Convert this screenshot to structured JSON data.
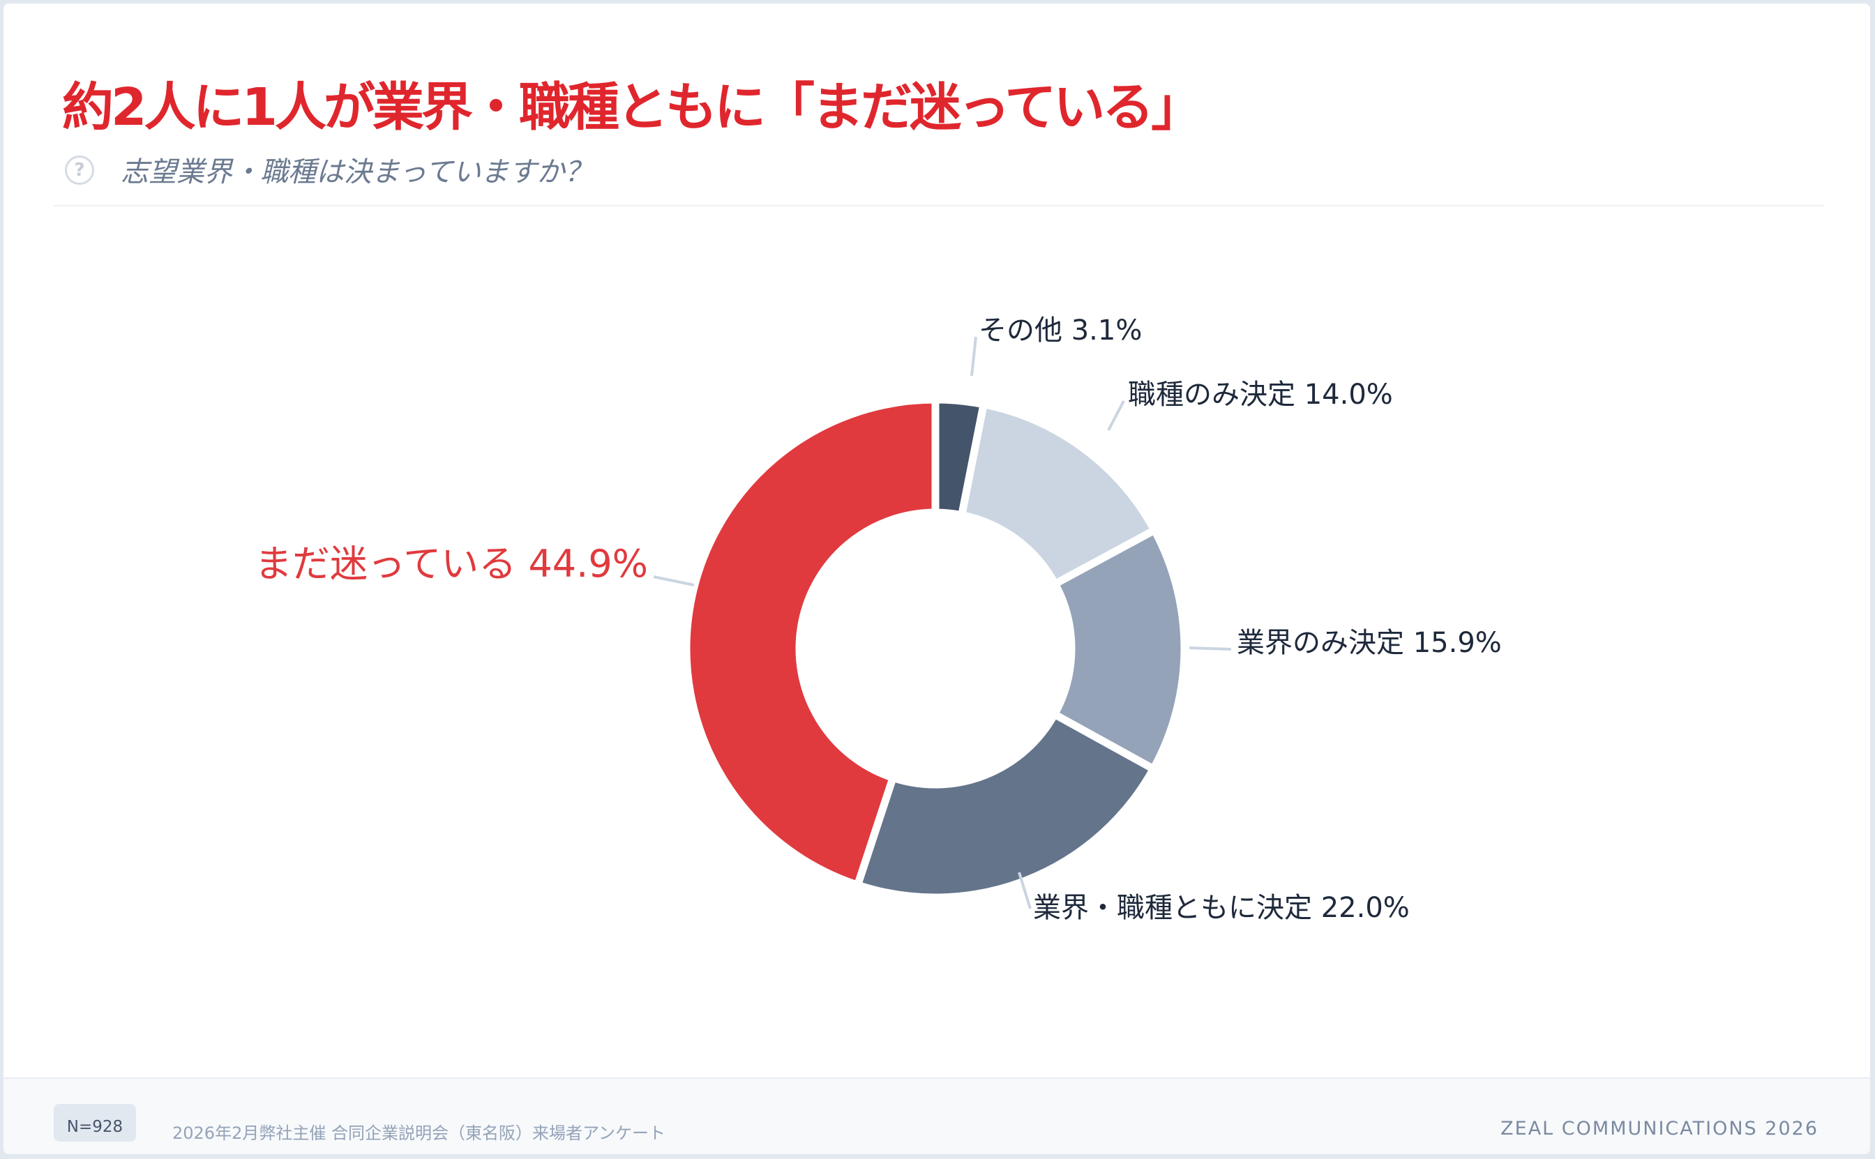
{
  "header": {
    "title": "約2人に1人が業界・職種ともに「まだ迷っている」",
    "question_icon": "question-circle-icon",
    "subtitle": "志望業界・職種は決まっていますか？"
  },
  "chart_data": {
    "type": "pie",
    "donut": true,
    "slices": [
      {
        "label": "まだ迷っている",
        "value": 44.9,
        "display": "44.9%",
        "color": "#e03a3e"
      },
      {
        "label": "その他",
        "value": 3.1,
        "display": "3.1%",
        "color": "#44546a"
      },
      {
        "label": "職種のみ決定",
        "value": 14.0,
        "display": "14.0%",
        "color": "#cbd5e1"
      },
      {
        "label": "業界のみ決定",
        "value": 15.9,
        "display": "15.9%",
        "color": "#94a3b8"
      },
      {
        "label": "業界・職種ともに決定",
        "value": 22.0,
        "display": "22.0%",
        "color": "#64748b"
      }
    ]
  },
  "footer": {
    "sample_size": "N=928",
    "source": "2026年2月弊社主催 合同企業説明会（東名阪）来場者アンケート",
    "brand": "ZEAL COMMUNICATIONS 2026"
  }
}
